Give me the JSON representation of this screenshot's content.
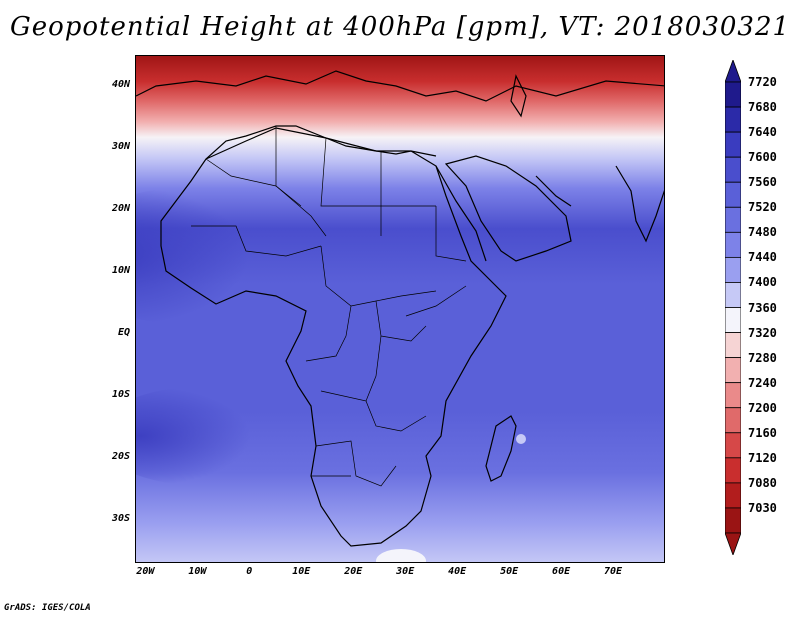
{
  "title": "Geopotential Height at 400hPa [gpm], VT: 2018030321",
  "credit": "GrADS: IGES/COLA",
  "lat_labels": [
    "40N",
    "30N",
    "20N",
    "10N",
    "EQ",
    "10S",
    "20S",
    "30S"
  ],
  "lat_values": [
    40,
    30,
    20,
    10,
    0,
    -10,
    -20,
    -30
  ],
  "lon_labels": [
    "20W",
    "10W",
    "0",
    "10E",
    "20E",
    "30E",
    "40E",
    "50E",
    "60E",
    "70E"
  ],
  "lon_values": [
    -20,
    -10,
    0,
    10,
    20,
    30,
    40,
    50,
    60,
    70
  ],
  "map_extent": {
    "lon": [
      -22,
      80
    ],
    "lat": [
      -37,
      45
    ]
  },
  "colorbar": {
    "levels": [
      "7720",
      "7680",
      "7640",
      "7600",
      "7560",
      "7520",
      "7480",
      "7440",
      "7400",
      "7360",
      "7320",
      "7280",
      "7240",
      "7200",
      "7160",
      "7120",
      "7080",
      "7030"
    ],
    "colors": [
      "#1f1a8c",
      "#2b2aa8",
      "#3a3cbf",
      "#4a4ecd",
      "#5a60d8",
      "#6a70e0",
      "#7d82e8",
      "#9a9ff0",
      "#c6c9f6",
      "#f4f4fb",
      "#f6d4d4",
      "#f2b0b0",
      "#ea8a8a",
      "#e06a6a",
      "#d64848",
      "#c92e2e",
      "#b21d1d",
      "#9a1414"
    ]
  }
}
